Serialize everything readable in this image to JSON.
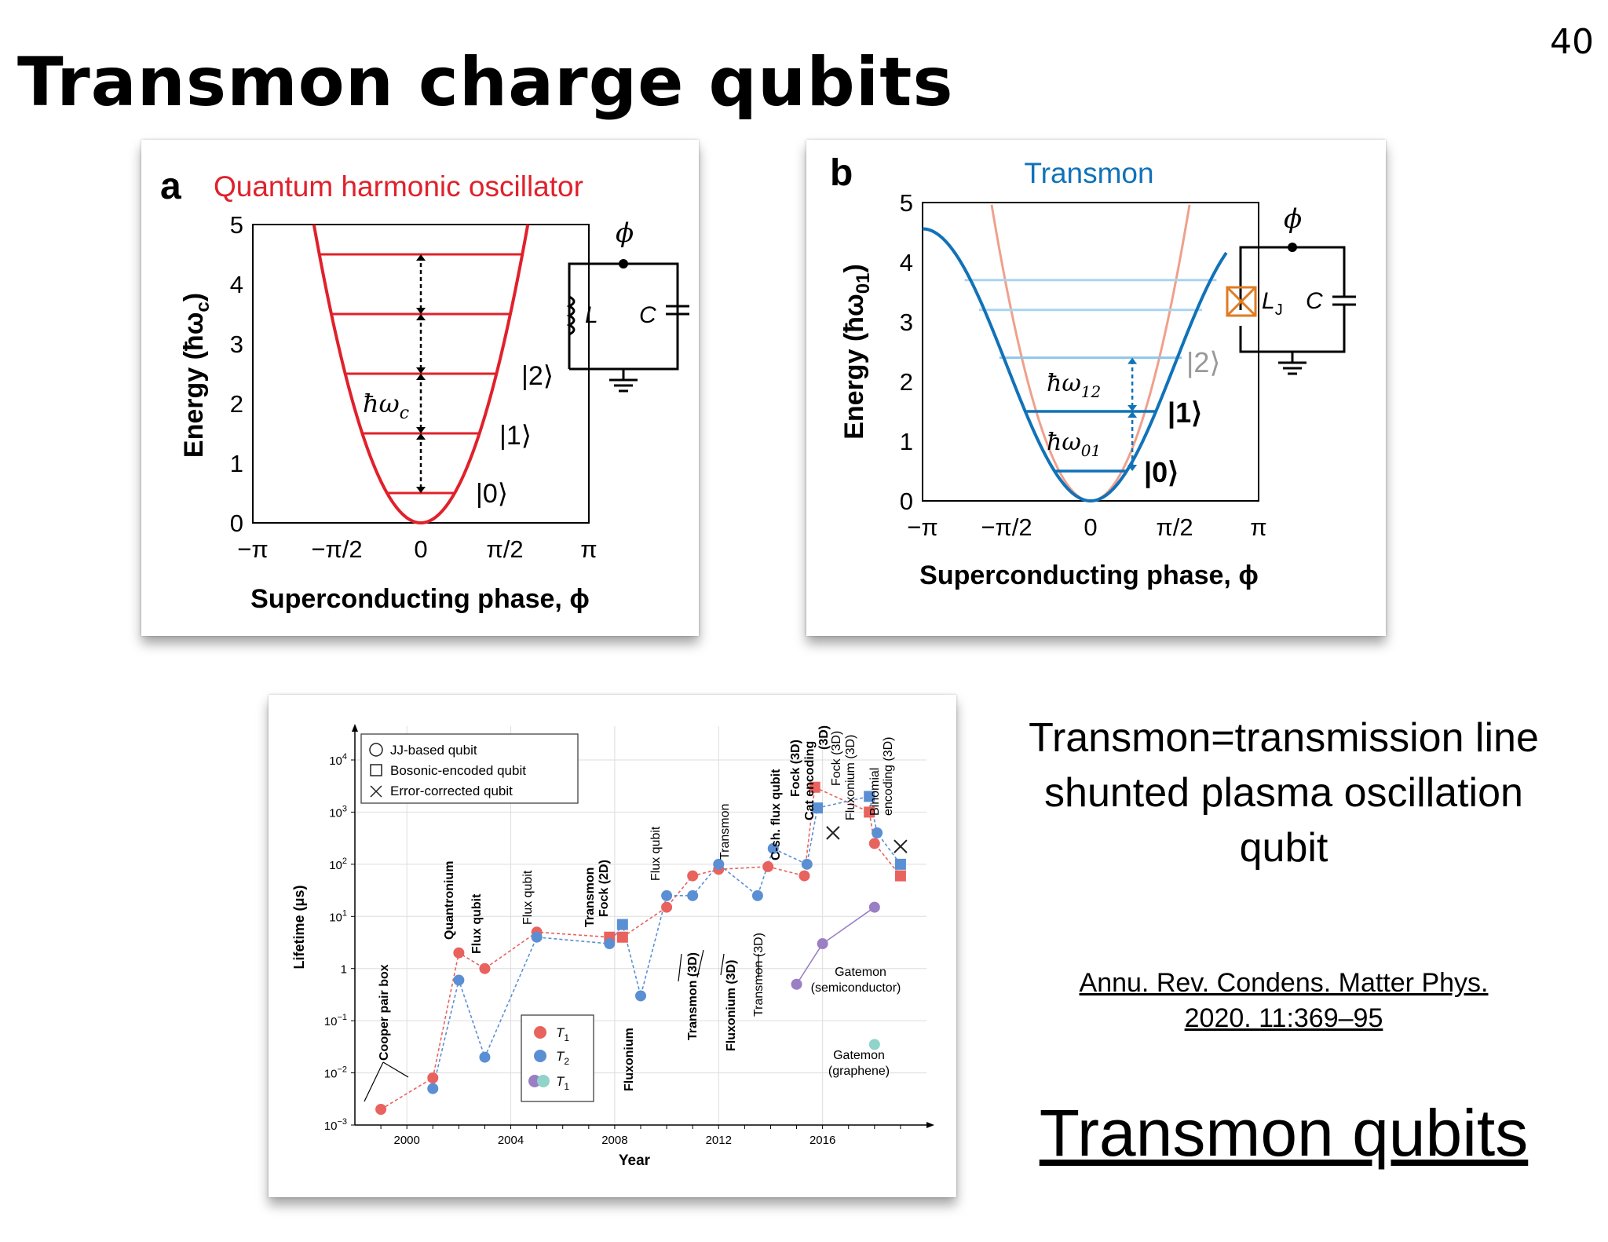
{
  "slide": {
    "number": "40",
    "title": "Transmon charge qubits"
  },
  "panel_a": {
    "letter": "a",
    "title": "Quantum harmonic oscillator",
    "ylabel": "Energy (ħω",
    "ylabel_sub": "c",
    "ylabel_end": ")",
    "xlabel": "Superconducting phase, ϕ",
    "xticks": [
      "−π",
      "−π/2",
      "0",
      "π/2",
      "π"
    ],
    "yticks": [
      "0",
      "1",
      "2",
      "3",
      "4",
      "5"
    ],
    "states": [
      "|0⟩",
      "|1⟩",
      "|2⟩"
    ],
    "spacing_label": "ħω",
    "spacing_sub": "c",
    "circuit": {
      "phi": "ϕ",
      "L": "L",
      "C": "C"
    },
    "color": "#e0212b"
  },
  "panel_b": {
    "letter": "b",
    "title": "Transmon",
    "ylabel": "Energy (ħω",
    "ylabel_sub": "01",
    "ylabel_end": ")",
    "xlabel": "Superconducting phase, ϕ",
    "xticks": [
      "−π",
      "−π/2",
      "0",
      "π/2",
      "π"
    ],
    "yticks": [
      "0",
      "1",
      "2",
      "3",
      "4",
      "5"
    ],
    "states": [
      "|0⟩",
      "|1⟩",
      "|2⟩"
    ],
    "spacing_labels": [
      {
        "main": "ħω",
        "sub": "01"
      },
      {
        "main": "ħω",
        "sub": "12"
      }
    ],
    "circuit": {
      "phi": "ϕ",
      "LJ": "L",
      "LJ_sub": "J",
      "C": "C"
    },
    "color": "#1172b8",
    "junction_color": "#e07b22"
  },
  "panel_c": {
    "xlabel": "Year",
    "ylabel": "Lifetime (μs)",
    "xticks": [
      "2000",
      "2004",
      "2008",
      "2012",
      "2016"
    ],
    "yticks": [
      {
        "base": "10",
        "exp": "4"
      },
      {
        "base": "10",
        "exp": "3"
      },
      {
        "base": "10",
        "exp": "2"
      },
      {
        "base": "10",
        "exp": "1"
      },
      {
        "base": "1",
        "exp": ""
      },
      {
        "base": "10",
        "exp": "−1"
      },
      {
        "base": "10",
        "exp": "−2"
      },
      {
        "base": "10",
        "exp": "−3"
      }
    ],
    "legend_shapes": [
      "JJ-based qubit",
      "Bosonic-encoded qubit",
      "Error-corrected qubit"
    ],
    "legend_colors": [
      {
        "label": "T",
        "sub": "1"
      },
      {
        "label": "T",
        "sub": "2"
      },
      {
        "label": "T",
        "sub": "1"
      }
    ],
    "annotations_bold": [
      "Cooper pair box",
      "Quantronium",
      "Flux qubit",
      "Transmon",
      "Fock (2D)",
      "Fluxonium",
      "Transmon (3D)",
      "Fluxonium (3D)",
      "C-sh. flux qubit",
      "Fock (3D)",
      "Cat encoding",
      "(3D)"
    ],
    "annotations_plain": [
      "Flux qubit",
      "Flux qubit",
      "Transmon",
      "Transmon (3D)",
      "Fock (3D)",
      "Fluxonium (3D)",
      "Binomial",
      "encoding (3D)"
    ],
    "gatemon_semiconductor": [
      "Gatemon",
      "(semiconductor)"
    ],
    "gatemon_graphene": [
      "Gatemon",
      "(graphene)"
    ],
    "colors": {
      "t1": "#e8625e",
      "t2": "#5b8fd3",
      "purple": "#9a7fc4",
      "teal": "#8fd3c9"
    }
  },
  "chart_data": [
    {
      "type": "line",
      "title": "Quantum harmonic oscillator",
      "xlabel": "Superconducting phase, ϕ",
      "ylabel": "Energy (ħωc)",
      "xlim": [
        -3.1416,
        3.1416
      ],
      "ylim": [
        0,
        5
      ],
      "series": [
        {
          "name": "",
          "x": [
            -2.0,
            -1.5,
            -1.0,
            -0.5,
            0,
            0.5,
            1.0,
            1.5,
            2.0
          ],
          "y": [
            5.0,
            2.81,
            1.25,
            0.31,
            0,
            0.31,
            1.25,
            2.81,
            5.0
          ]
        }
      ],
      "levels": [
        0.5,
        1.5,
        2.5,
        3.5,
        4.5
      ]
    },
    {
      "type": "line",
      "title": "Transmon",
      "xlabel": "Superconducting phase, ϕ",
      "ylabel": "Energy (ħω01)",
      "xlim": [
        -3.1416,
        3.1416
      ],
      "ylim": [
        0,
        5
      ],
      "series": [
        {
          "name": "",
          "x": [
            -3.14,
            -2.5,
            -2.0,
            -1.5,
            -1.0,
            -0.5,
            0,
            0.5,
            1.0,
            1.5,
            2.0,
            2.5
          ],
          "y": [
            4.55,
            4.2,
            3.42,
            2.35,
            1.25,
            0.37,
            0,
            0.37,
            1.25,
            2.35,
            3.42,
            4.2
          ]
        }
      ],
      "levels": [
        0.5,
        1.5,
        2.4,
        3.2,
        3.7
      ]
    },
    {
      "type": "scatter",
      "xlabel": "Year",
      "ylabel": "Lifetime (μs)",
      "xlim": [
        1998,
        2020
      ],
      "ylim": [
        0.001,
        10000
      ],
      "yscale": "log",
      "series": [
        {
          "name": "T1",
          "x": [
            1999,
            2001,
            2002,
            2003,
            2005,
            2007.8,
            2008.3,
            2010,
            2011,
            2012,
            2013.9,
            2015.3,
            2015.7,
            2017.8,
            2018,
            2019
          ],
          "y": [
            0.002,
            0.008,
            2,
            1,
            5,
            4,
            4,
            15,
            60,
            80,
            90,
            60,
            3000,
            1000,
            250,
            60
          ]
        },
        {
          "name": "T2",
          "x": [
            2001,
            2002,
            2003,
            2005,
            2007.8,
            2008.3,
            2009,
            2010,
            2011,
            2012,
            2013.5,
            2014.1,
            2015.4,
            2015.8,
            2017.8,
            2018.1,
            2019
          ],
          "y": [
            0.005,
            0.6,
            0.02,
            4,
            3,
            7,
            0.3,
            25,
            25,
            100,
            25,
            200,
            100,
            1200,
            2000,
            400,
            100
          ]
        },
        {
          "name": "Gatemon (semiconductor)",
          "x": [
            2015,
            2016,
            2018
          ],
          "y": [
            0.5,
            3,
            15
          ]
        },
        {
          "name": "Gatemon (graphene)",
          "x": [
            2018
          ],
          "y": [
            0.035
          ]
        }
      ]
    }
  ]
}
